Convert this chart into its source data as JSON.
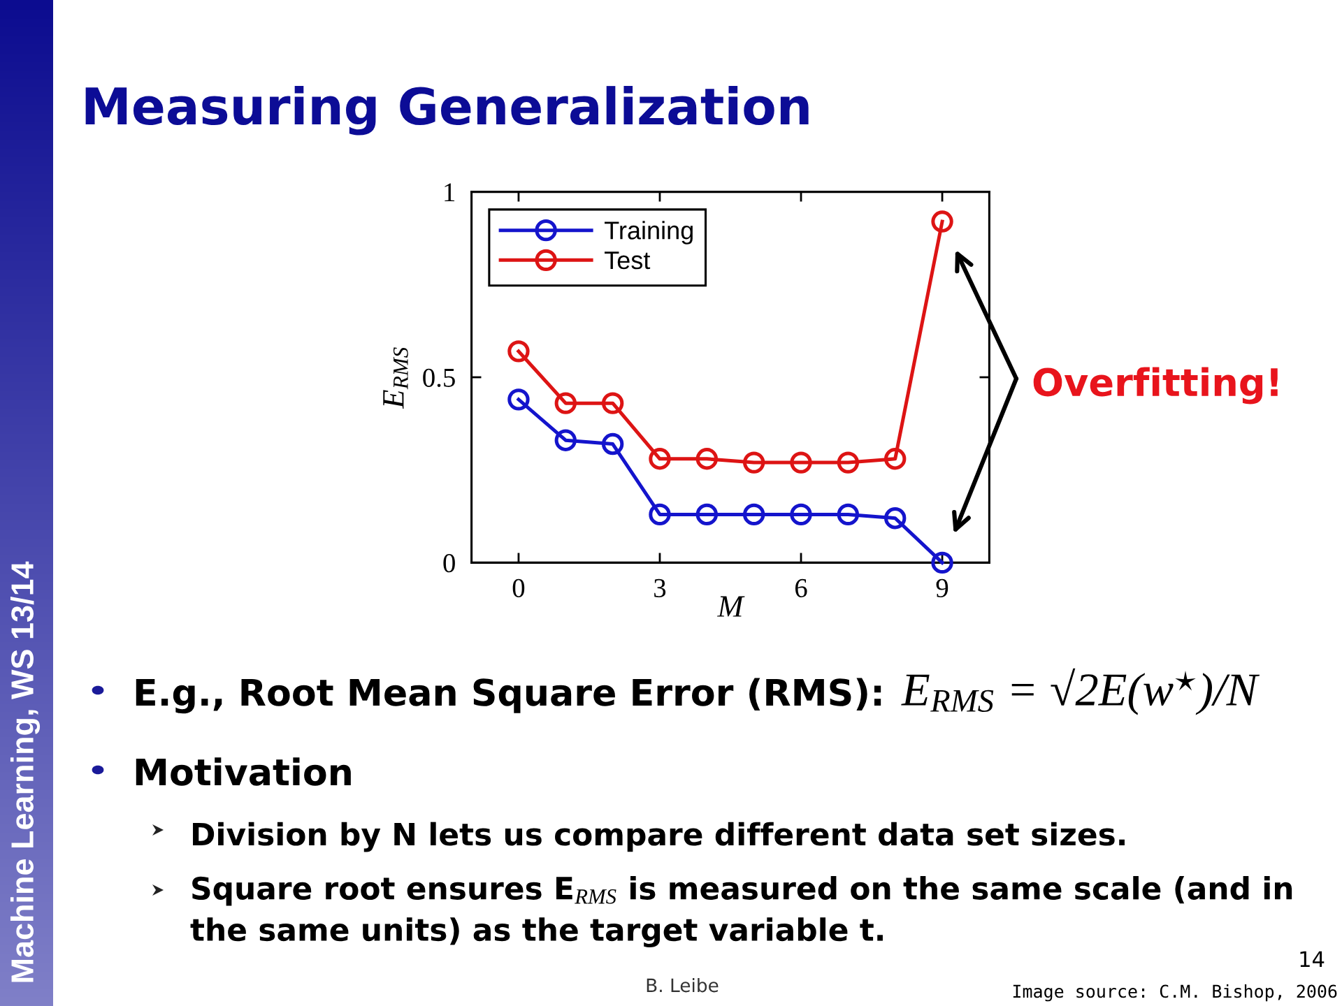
{
  "chart_data": {
    "type": "line",
    "title": "Measuring Generalization",
    "xlabel": "M",
    "ylabel": "E$_{RMS}$",
    "x": [
      0,
      1,
      2,
      3,
      4,
      5,
      6,
      7,
      8,
      9
    ],
    "series": [
      {
        "name": "Training",
        "color": "#1414cc",
        "values": [
          0.44,
          0.33,
          0.32,
          0.13,
          0.13,
          0.13,
          0.13,
          0.13,
          0.12,
          0
        ]
      },
      {
        "name": "Test",
        "color": "#dd1414",
        "values": [
          0.57,
          0.43,
          0.43,
          0.28,
          0.28,
          0.27,
          0.27,
          0.27,
          0.28,
          0.92
        ]
      }
    ],
    "xlim": [
      -1,
      10
    ],
    "xticks": [
      0,
      3,
      6,
      9
    ],
    "ylim": [
      0,
      1
    ],
    "yticks": [
      0,
      0.5,
      1
    ],
    "grid": false,
    "legend": "top left",
    "marker": "circle",
    "line_style": "solid",
    "annotations": [
      "Overfitting!",
      "E.g., Root Mean Square Error (RMS):",
      "E$_{RMS}$ = √2E(w$^{⋆}$)/N",
      "Motivation",
      "Division by N lets us compare different data set sizes.",
      "Square root ensures E$_{RMS}$ is measured on the same scale (and in\nthe same units) as the target variable t.",
      "B. Leibe",
      "14",
      "Image source: C.M. Bishop, 2006",
      "Machine Learning, WS 13/14"
    ]
  }
}
